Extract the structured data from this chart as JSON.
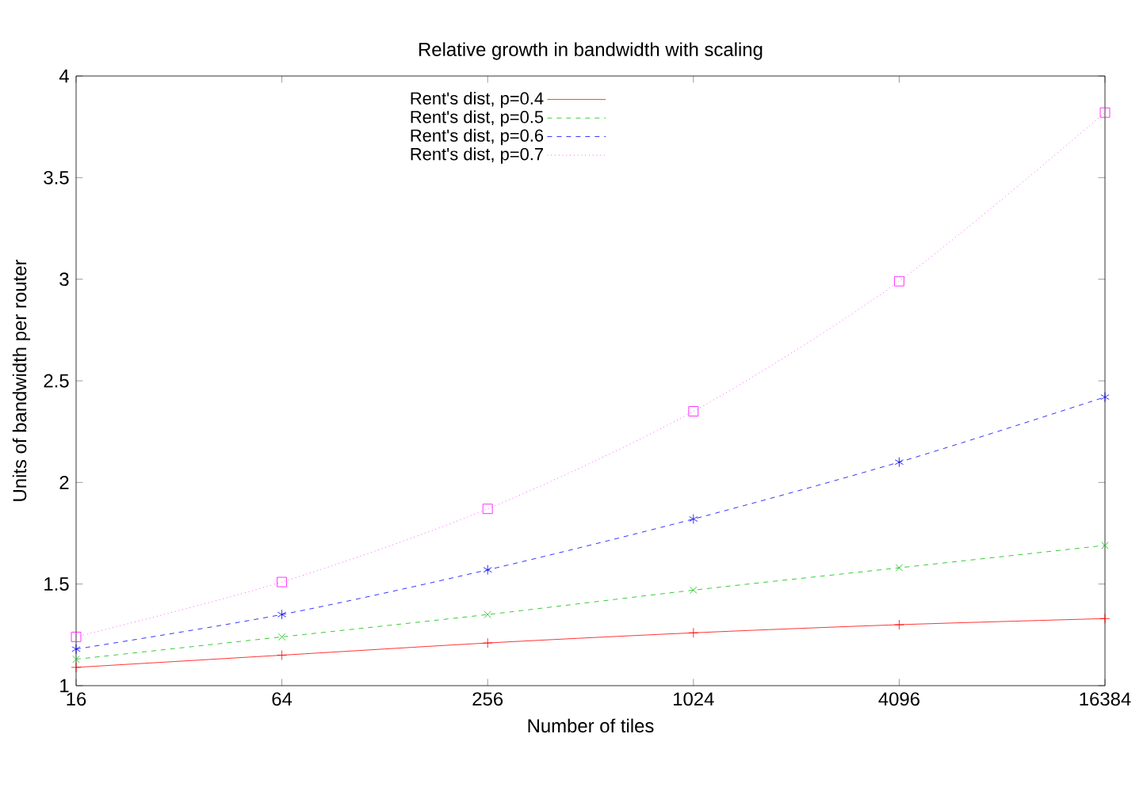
{
  "chart_data": {
    "type": "line",
    "title": "Relative growth in bandwidth with scaling",
    "xlabel": "Number of tiles",
    "ylabel": "Units of bandwidth per router",
    "x": [
      16,
      64,
      256,
      1024,
      4096,
      16384
    ],
    "log": "x",
    "xlim": [
      16,
      16384
    ],
    "xticks": [
      16,
      64,
      256,
      1024,
      4096,
      16384
    ],
    "ylim": [
      1,
      4
    ],
    "yticks": [
      1,
      1.5,
      2,
      2.5,
      3,
      3.5,
      4
    ],
    "legend": "top left",
    "grid": false,
    "series": [
      {
        "name": "Rent's dist, p=0.4",
        "color": "#ff0000",
        "marker": "cross",
        "line_style": "solid",
        "values": [
          1.09,
          1.15,
          1.21,
          1.26,
          1.3,
          1.33
        ]
      },
      {
        "name": "Rent's dist, p=0.5",
        "color": "#00c000",
        "marker": "cross",
        "line_style": "dashed",
        "values": [
          1.13,
          1.24,
          1.35,
          1.47,
          1.58,
          1.69
        ]
      },
      {
        "name": "Rent's dist, p=0.6",
        "color": "#0000ff",
        "marker": "cross",
        "line_style": "dashed",
        "values": [
          1.18,
          1.35,
          1.57,
          1.82,
          2.1,
          2.42
        ]
      },
      {
        "name": "Rent's dist, p=0.7",
        "color": "#ff00ff",
        "marker": "square",
        "line_style": "dotted",
        "values": [
          1.24,
          1.51,
          1.87,
          2.35,
          2.99,
          3.82
        ]
      }
    ]
  }
}
